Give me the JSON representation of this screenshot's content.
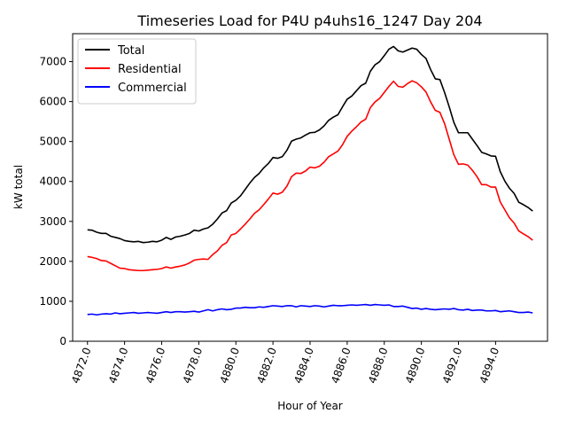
{
  "chart_data": {
    "type": "line",
    "title": "Timeseries Load for P4U p4uhs16_1247  Day 204",
    "xlabel": "Hour of Year",
    "ylabel": "kW total",
    "xlim": [
      4871.2,
      4896.8
    ],
    "ylim": [
      0,
      7700
    ],
    "x_ticks": [
      4872,
      4874,
      4876,
      4878,
      4880,
      4882,
      4884,
      4886,
      4888,
      4890,
      4892,
      4894
    ],
    "x_tick_labels": [
      "4872.0",
      "4874.0",
      "4876.0",
      "4878.0",
      "4880.0",
      "4882.0",
      "4884.0",
      "4886.0",
      "4888.0",
      "4890.0",
      "4892.0",
      "4894.0"
    ],
    "y_ticks": [
      0,
      1000,
      2000,
      3000,
      4000,
      5000,
      6000,
      7000
    ],
    "y_tick_labels": [
      "0",
      "1000",
      "2000",
      "3000",
      "4000",
      "5000",
      "6000",
      "7000"
    ],
    "legend_position": "upper-left",
    "x_start": 4872.0,
    "x_step": 0.25,
    "series": [
      {
        "name": "Total",
        "color": "#000000",
        "values": [
          2790,
          2780,
          2730,
          2700,
          2700,
          2630,
          2600,
          2570,
          2520,
          2500,
          2490,
          2500,
          2470,
          2480,
          2500,
          2490,
          2530,
          2600,
          2550,
          2610,
          2630,
          2660,
          2700,
          2780,
          2760,
          2810,
          2840,
          2930,
          3060,
          3210,
          3270,
          3460,
          3530,
          3640,
          3800,
          3960,
          4100,
          4200,
          4340,
          4450,
          4600,
          4580,
          4620,
          4780,
          5010,
          5060,
          5090,
          5160,
          5220,
          5230,
          5290,
          5390,
          5530,
          5610,
          5670,
          5870,
          6060,
          6140,
          6270,
          6400,
          6460,
          6760,
          6920,
          7000,
          7150,
          7310,
          7380,
          7270,
          7240,
          7290,
          7340,
          7310,
          7180,
          7080,
          6800,
          6570,
          6550,
          6230,
          5870,
          5480,
          5220,
          5220,
          5220,
          5060,
          4900,
          4730,
          4690,
          4640,
          4630,
          4250,
          4010,
          3830,
          3700,
          3480,
          3420,
          3350,
          3260
        ]
      },
      {
        "name": "Residential",
        "color": "#ff0000",
        "values": [
          2120,
          2100,
          2070,
          2020,
          2010,
          1950,
          1890,
          1830,
          1820,
          1790,
          1780,
          1770,
          1770,
          1780,
          1790,
          1800,
          1820,
          1860,
          1830,
          1860,
          1880,
          1910,
          1960,
          2030,
          2050,
          2060,
          2050,
          2170,
          2260,
          2400,
          2470,
          2660,
          2700,
          2810,
          2930,
          3060,
          3200,
          3290,
          3420,
          3560,
          3710,
          3680,
          3730,
          3880,
          4120,
          4210,
          4200,
          4260,
          4360,
          4340,
          4380,
          4480,
          4620,
          4690,
          4760,
          4920,
          5130,
          5260,
          5370,
          5490,
          5560,
          5850,
          5990,
          6080,
          6230,
          6380,
          6510,
          6380,
          6360,
          6450,
          6520,
          6470,
          6370,
          6240,
          5990,
          5780,
          5730,
          5450,
          5060,
          4670,
          4430,
          4440,
          4410,
          4280,
          4120,
          3920,
          3920,
          3860,
          3860,
          3490,
          3290,
          3090,
          2960,
          2760,
          2690,
          2620,
          2530
        ]
      },
      {
        "name": "Commercial",
        "color": "#0000ff",
        "values": [
          670,
          680,
          660,
          680,
          690,
          680,
          710,
          690,
          700,
          710,
          720,
          700,
          710,
          720,
          710,
          700,
          720,
          740,
          720,
          740,
          740,
          730,
          740,
          750,
          730,
          760,
          790,
          760,
          790,
          810,
          790,
          800,
          830,
          830,
          850,
          840,
          840,
          860,
          850,
          870,
          890,
          880,
          870,
          890,
          890,
          860,
          890,
          880,
          870,
          890,
          880,
          860,
          880,
          900,
          890,
          890,
          900,
          910,
          900,
          910,
          920,
          900,
          920,
          910,
          900,
          910,
          870,
          870,
          880,
          850,
          820,
          830,
          800,
          820,
          800,
          790,
          800,
          810,
          800,
          820,
          790,
          780,
          800,
          770,
          780,
          780,
          760,
          760,
          770,
          740,
          750,
          760,
          740,
          720,
          720,
          730,
          710
        ]
      }
    ]
  }
}
